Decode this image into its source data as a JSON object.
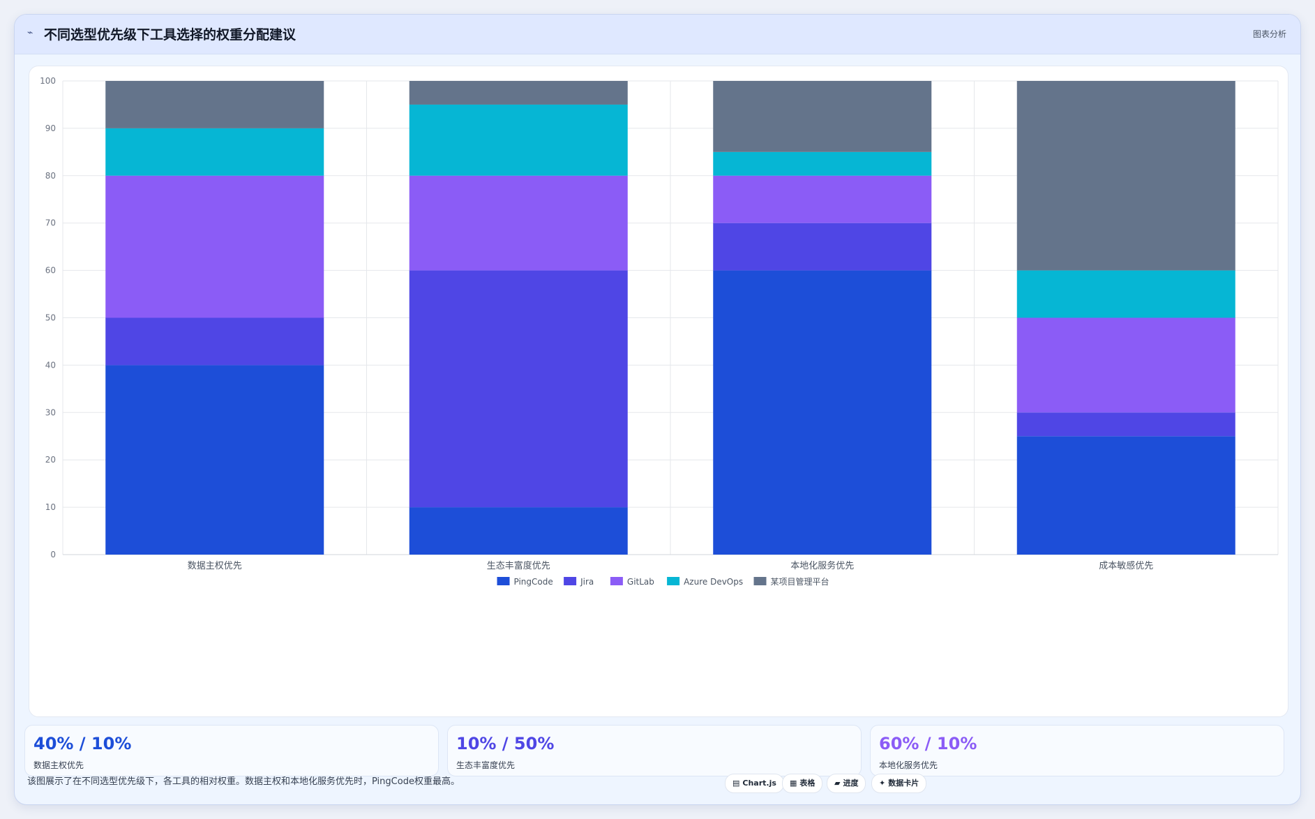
{
  "header": {
    "icon": "chart-line-icon",
    "title": "不同选型优先级下工具选择的权重分配建议",
    "right_label": "图表分析"
  },
  "colors": {
    "PingCode": "#1d4ed8",
    "Jira": "#4f46e5",
    "GitLab": "#8b5cf6",
    "Azure DevOps": "#06b6d4",
    "某项目管理平台": "#64748b"
  },
  "chart_data": {
    "type": "bar",
    "stacked": true,
    "categories": [
      "数据主权优先",
      "生态丰富度优先",
      "本地化服务优先",
      "成本敏感优先"
    ],
    "series": [
      {
        "name": "PingCode",
        "values": [
          40,
          10,
          60,
          25
        ]
      },
      {
        "name": "Jira",
        "values": [
          10,
          50,
          10,
          5
        ]
      },
      {
        "name": "GitLab",
        "values": [
          30,
          20,
          10,
          20
        ]
      },
      {
        "name": "Azure DevOps",
        "values": [
          10,
          15,
          5,
          10
        ]
      },
      {
        "name": "某项目管理平台",
        "values": [
          10,
          5,
          15,
          40
        ]
      }
    ],
    "ylim": [
      0,
      100
    ],
    "yticks": [
      0,
      10,
      20,
      30,
      40,
      50,
      60,
      70,
      80,
      90,
      100
    ],
    "grid": true,
    "legend_position": "bottom"
  },
  "kpis": [
    {
      "value": "40% / 10%",
      "label": "数据主权优先",
      "color": "#1d4ed8"
    },
    {
      "value": "10% / 50%",
      "label": "生态丰富度优先",
      "color": "#4f46e5"
    },
    {
      "value": "60% / 10%",
      "label": "本地化服务优先",
      "color": "#8b5cf6"
    }
  ],
  "footer": {
    "note": "该图展示了在不同选型优先级下，各工具的相对权重。数据主权和本地化服务优先时，PingCode权重最高。",
    "chips": [
      {
        "icon": "chart-icon",
        "glyph": "▤",
        "label": "Chart.js"
      },
      {
        "icon": "table-icon",
        "glyph": "▦",
        "label": "表格"
      },
      {
        "icon": "progress-icon",
        "glyph": "▰",
        "label": "进度"
      },
      {
        "icon": "sparkle-icon",
        "glyph": "✦",
        "label": "数据卡片"
      }
    ]
  }
}
